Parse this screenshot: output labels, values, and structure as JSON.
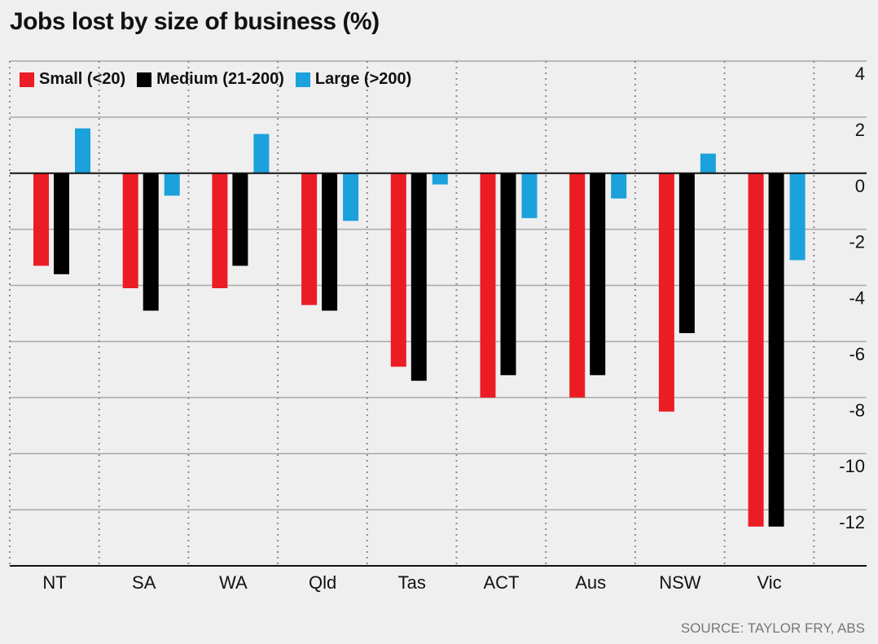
{
  "chart_data": {
    "type": "bar",
    "title": "Jobs lost by size of business (%)",
    "categories": [
      "NT",
      "SA",
      "WA",
      "Qld",
      "Tas",
      "ACT",
      "Aus",
      "NSW",
      "Vic"
    ],
    "series": [
      {
        "name": "Small (<20)",
        "color": "#ec1c24",
        "values": [
          -3.3,
          -4.1,
          -4.1,
          -4.7,
          -6.9,
          -8.0,
          -8.0,
          -8.5,
          -12.6
        ]
      },
      {
        "name": "Medium (21-200)",
        "color": "#000000",
        "values": [
          -3.6,
          -4.9,
          -3.3,
          -4.9,
          -7.4,
          -7.2,
          -7.2,
          -5.7,
          -12.6
        ]
      },
      {
        "name": "Large (>200)",
        "color": "#1ba1dc",
        "values": [
          1.6,
          -0.8,
          1.4,
          -1.7,
          -0.4,
          -1.6,
          -0.9,
          0.7,
          -3.1
        ]
      }
    ],
    "yticks": [
      4,
      2,
      0,
      -2,
      -4,
      -6,
      -8,
      -10,
      -12
    ],
    "ylim": [
      -14,
      4
    ],
    "xlabel": "",
    "ylabel": "",
    "grid": true,
    "legend_position": "top-left",
    "source": "SOURCE: TAYLOR FRY, ABS"
  }
}
